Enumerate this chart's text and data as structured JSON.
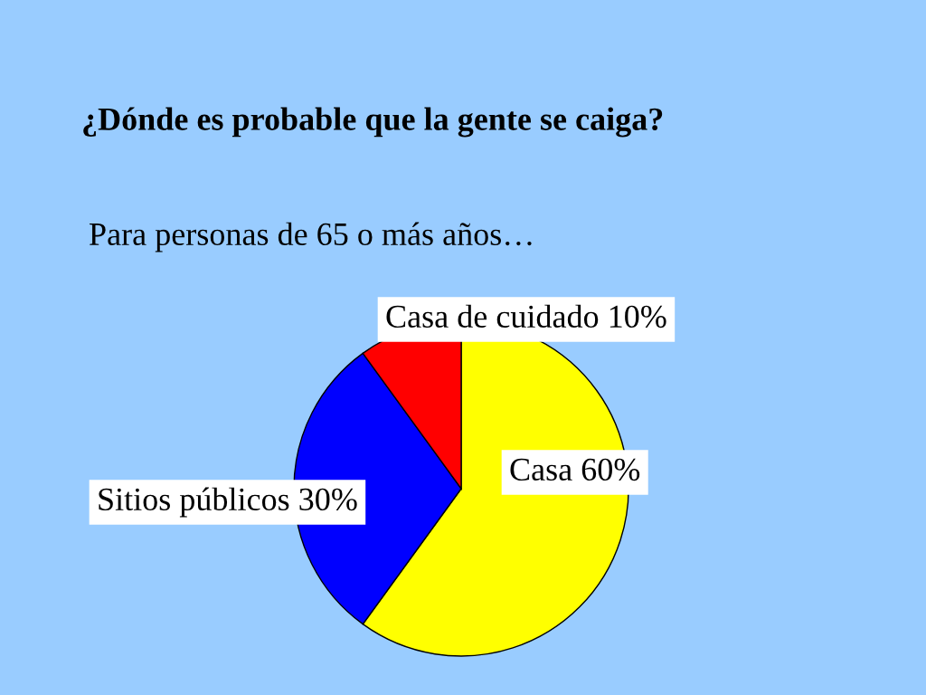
{
  "chart_data": {
    "type": "pie",
    "title": "¿Dónde es probable que la gente se caiga?",
    "subtitle": "Para personas de 65 o más años…",
    "categories": [
      "Casa 60%",
      "Sitios públicos 30%",
      "Casa de cuidado 10%"
    ],
    "values": [
      60,
      30,
      10
    ],
    "colors": [
      "#ffff00",
      "#0000ff",
      "#ff0000"
    ]
  }
}
